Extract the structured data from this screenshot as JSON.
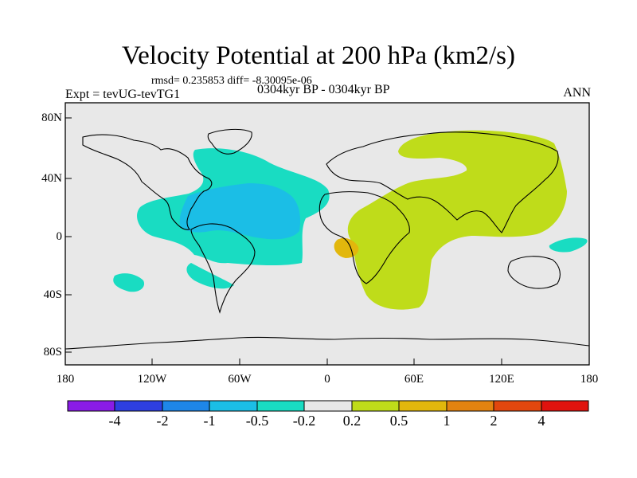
{
  "title": "Velocity Potential at 200 hPa (km2/s)",
  "stats": "rmsd= 0.235853 diff= -8.30095e-06",
  "expt": "Expt = tevUG-tevTG1",
  "period": "0304kyr BP - 0304kyr BP",
  "season": "ANN",
  "map": {
    "lat_ticks": [
      "80N",
      "40N",
      "0",
      "40S",
      "80S"
    ],
    "lon_ticks": [
      "180",
      "120W",
      "60W",
      "0",
      "60E",
      "120E",
      "180"
    ]
  },
  "colorbar": {
    "labels": [
      "-4",
      "-2",
      "-1",
      "-0.5",
      "-0.2",
      "0.2",
      "0.5",
      "1",
      "2",
      "4"
    ],
    "colors": [
      "#8a1ce6",
      "#2e3fe0",
      "#1e86e8",
      "#1bbee6",
      "#19dcc2",
      "#e8e8e8",
      "#bfdc1a",
      "#e2b70c",
      "#e38310",
      "#e2470e",
      "#e0130e"
    ]
  },
  "colors": {
    "ocean": "#e8e8e8",
    "negative_weak": "#19dcc2",
    "negative_mid": "#1bbee6",
    "positive_weak": "#bfdc1a",
    "positive_mid": "#e2b70c"
  }
}
